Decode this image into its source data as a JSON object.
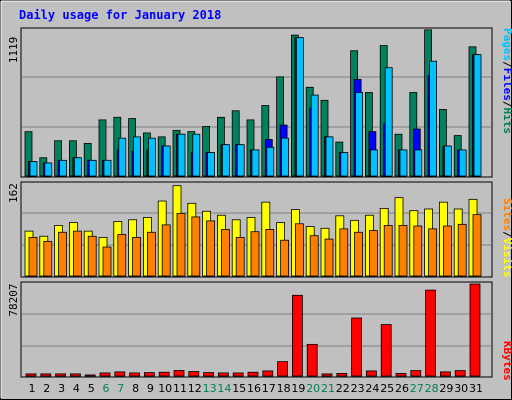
{
  "chart_data": {
    "type": "bar",
    "title": "Daily usage for January 2018",
    "categories": [
      "1",
      "2",
      "3",
      "4",
      "5",
      "6",
      "7",
      "8",
      "9",
      "10",
      "11",
      "12",
      "13",
      "14",
      "15",
      "16",
      "17",
      "18",
      "19",
      "20",
      "21",
      "22",
      "23",
      "24",
      "25",
      "26",
      "27",
      "28",
      "29",
      "30",
      "31"
    ],
    "weekend_days": [
      "6",
      "7",
      "13",
      "14",
      "20",
      "21",
      "27",
      "28"
    ],
    "panels": [
      {
        "id": "hits-files-pages",
        "max_label": "1119",
        "ymax": 1119,
        "legend": [
          {
            "text": "Pages",
            "color": "#00c0ff"
          },
          {
            "text": "/",
            "color": "#000000"
          },
          {
            "text": "Files",
            "color": "#0000ff"
          },
          {
            "text": "/",
            "color": "#000000"
          },
          {
            "text": "Hits",
            "color": "#00805c"
          }
        ],
        "series": [
          {
            "name": "Hits",
            "color": "#00805c",
            "values": [
              340,
              140,
              270,
              270,
              250,
              430,
              450,
              440,
              330,
              300,
              350,
              340,
              380,
              450,
              500,
              430,
              540,
              760,
              1080,
              680,
              580,
              260,
              960,
              640,
              1000,
              320,
              640,
              1120,
              510,
              310,
              990
            ]
          },
          {
            "name": "Files",
            "color": "#0000ff",
            "values": [
              110,
              100,
              120,
              140,
              120,
              120,
              200,
              190,
              200,
              230,
              320,
              180,
              180,
              240,
              240,
              200,
              280,
              390,
              1060,
              520,
              300,
              180,
              740,
              340,
              400,
              200,
              360,
              770,
              230,
              200,
              930
            ]
          },
          {
            "name": "Pages",
            "color": "#00c0ff",
            "values": [
              110,
              100,
              120,
              140,
              120,
              120,
              290,
              300,
              290,
              230,
              320,
              320,
              180,
              240,
              240,
              200,
              220,
              290,
              1060,
              620,
              300,
              180,
              640,
              200,
              830,
              200,
              200,
              880,
              230,
              200,
              930
            ]
          }
        ]
      },
      {
        "id": "visits-sites",
        "max_label": "162",
        "ymax": 162,
        "legend": [
          {
            "text": "Sites",
            "color": "#ff8000"
          },
          {
            "text": "/",
            "color": "#000000"
          },
          {
            "text": "Visits",
            "color": "#ffff00"
          }
        ],
        "series": [
          {
            "name": "Visits",
            "color": "#ffff00",
            "values": [
              79,
              70,
              89,
              94,
              79,
              68,
              96,
              99,
              103,
              132,
              159,
              128,
              114,
              107,
              99,
              103,
              130,
              94,
              117,
              87,
              84,
              106,
              98,
              107,
              119,
              138,
              115,
              118,
              130,
              118,
              135
            ]
          },
          {
            "name": "Sites",
            "color": "#ff8000",
            "values": [
              68,
              61,
              77,
              79,
              70,
              51,
              73,
              68,
              77,
              90,
              110,
              104,
              97,
              82,
              68,
              78,
              82,
              63,
              92,
              71,
              65,
              83,
              77,
              80,
              89,
              89,
              88,
              83,
              88,
              91,
              108
            ]
          }
        ]
      },
      {
        "id": "kbytes",
        "max_label": "78207",
        "ymax": 78207,
        "legend": [
          {
            "text": "KBytes",
            "color": "#ff0000"
          }
        ],
        "series": [
          {
            "name": "KBytes",
            "color": "#ff0000",
            "values": [
              1800,
              1800,
              1800,
              1800,
              900,
              2600,
              3500,
              2600,
              2900,
              3200,
              4700,
              3800,
              2900,
              2600,
              2600,
              3200,
              4300,
              12200,
              68600,
              26900,
              1800,
              2200,
              49300,
              4300,
              43700,
              2200,
              4600,
              73000,
              3500,
              4600,
              78200
            ]
          }
        ]
      }
    ]
  }
}
